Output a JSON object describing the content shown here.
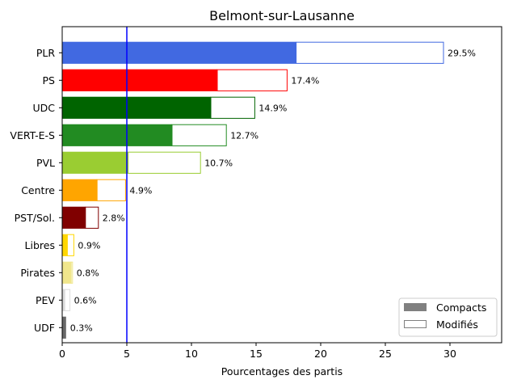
{
  "chart_data": {
    "type": "bar",
    "orientation": "horizontal",
    "stacked": true,
    "title": "Belmont-sur-Lausanne",
    "xlabel": "Pourcentages des partis",
    "ylabel": "",
    "xlim": [
      0,
      34
    ],
    "xticks": [
      0,
      5,
      10,
      15,
      20,
      25,
      30
    ],
    "reference_line": {
      "x": 5,
      "color": "#0000ff"
    },
    "legend": {
      "position": "bottom-right",
      "entries": [
        {
          "label": "Compacts",
          "style": "filled",
          "color": "#808080"
        },
        {
          "label": "Modifiés",
          "style": "outline",
          "color": "#808080"
        }
      ]
    },
    "grid": false,
    "categories": [
      "PLR",
      "PS",
      "UDC",
      "VERT-E-S",
      "PVL",
      "Centre",
      "PST/Sol.",
      "Libres",
      "Pirates",
      "PEV",
      "UDF"
    ],
    "colors": [
      "#4169e1",
      "#ff0000",
      "#006400",
      "#228b22",
      "#9acd32",
      "#ffa500",
      "#800000",
      "#ffd700",
      "#f0e68c",
      "#dcdcdc",
      "#696969"
    ],
    "series": [
      {
        "name": "Compacts",
        "values": [
          18.1,
          12.0,
          11.5,
          8.5,
          5.1,
          2.7,
          1.8,
          0.4,
          0.7,
          0.2,
          0.3
        ]
      },
      {
        "name": "Modifiés",
        "values": [
          11.4,
          5.4,
          3.4,
          4.2,
          5.6,
          2.2,
          1.0,
          0.5,
          0.1,
          0.4,
          0.0
        ]
      }
    ],
    "totals": [
      29.5,
      17.4,
      14.9,
      12.7,
      10.7,
      4.9,
      2.8,
      0.9,
      0.8,
      0.6,
      0.3
    ],
    "total_labels": [
      "29.5%",
      "17.4%",
      "14.9%",
      "12.7%",
      "10.7%",
      "4.9%",
      "2.8%",
      "0.9%",
      "0.8%",
      "0.6%",
      "0.3%"
    ]
  }
}
